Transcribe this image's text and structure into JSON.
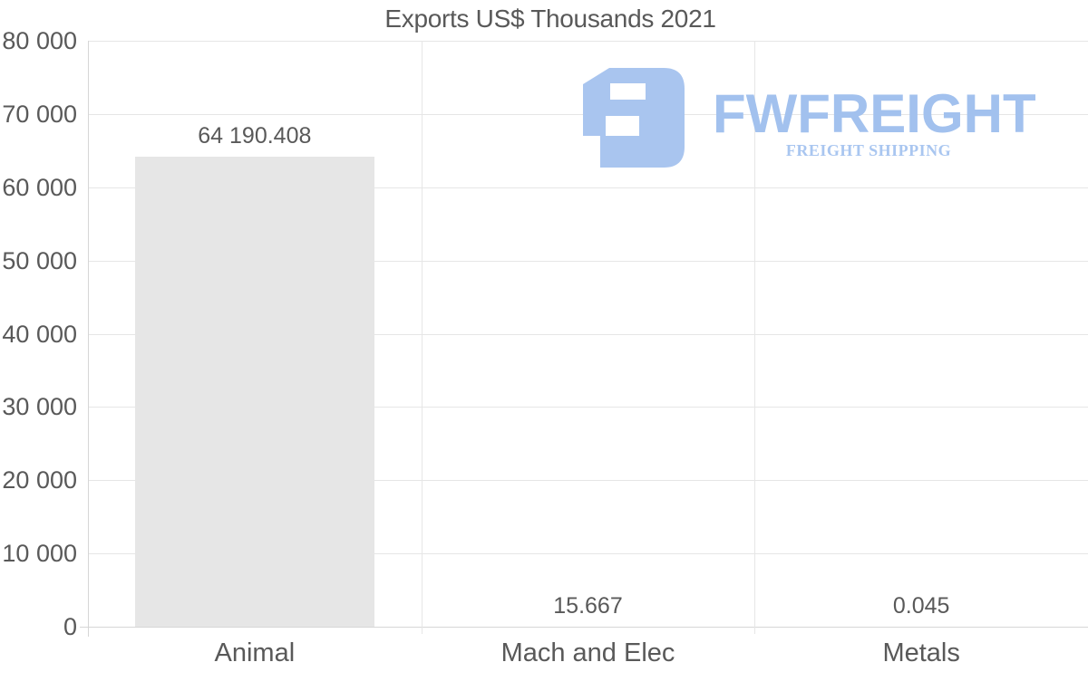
{
  "chart_data": {
    "type": "bar",
    "title": "Exports US$ Thousands 2021",
    "categories": [
      "Animal",
      "Mach and Elec",
      "Metals"
    ],
    "values": [
      64190.408,
      15.667,
      0.045
    ],
    "value_labels": [
      "64 190.408",
      "15.667",
      "0.045"
    ],
    "xlabel": "",
    "ylabel": "",
    "ylim": [
      0,
      80000
    ],
    "y_ticks": [
      {
        "value": 0,
        "label": "0"
      },
      {
        "value": 10000,
        "label": "10 000"
      },
      {
        "value": 20000,
        "label": "20 000"
      },
      {
        "value": 30000,
        "label": "30 000"
      },
      {
        "value": 40000,
        "label": "40 000"
      },
      {
        "value": 50000,
        "label": "50 000"
      },
      {
        "value": 60000,
        "label": "60 000"
      },
      {
        "value": 70000,
        "label": "70 000"
      },
      {
        "value": 80000,
        "label": "80 000"
      }
    ],
    "grid": true,
    "legend": "none",
    "bar_color": "#e6e6e6"
  },
  "watermark": {
    "brand": "FWFREIGHT",
    "tagline": "FREIGHT SHIPPING",
    "logo_icon": "fwfreight-monogram-icon",
    "colors": {
      "icon": "#a9c5ef",
      "brand": "#a2c1ee",
      "tagline": "#a9c6f0"
    }
  },
  "colors": {
    "background": "#ffffff",
    "text": "#595959",
    "gridline": "#e6e6e6",
    "axis_line": "#d6d6d6",
    "bar": "#e6e6e6"
  }
}
